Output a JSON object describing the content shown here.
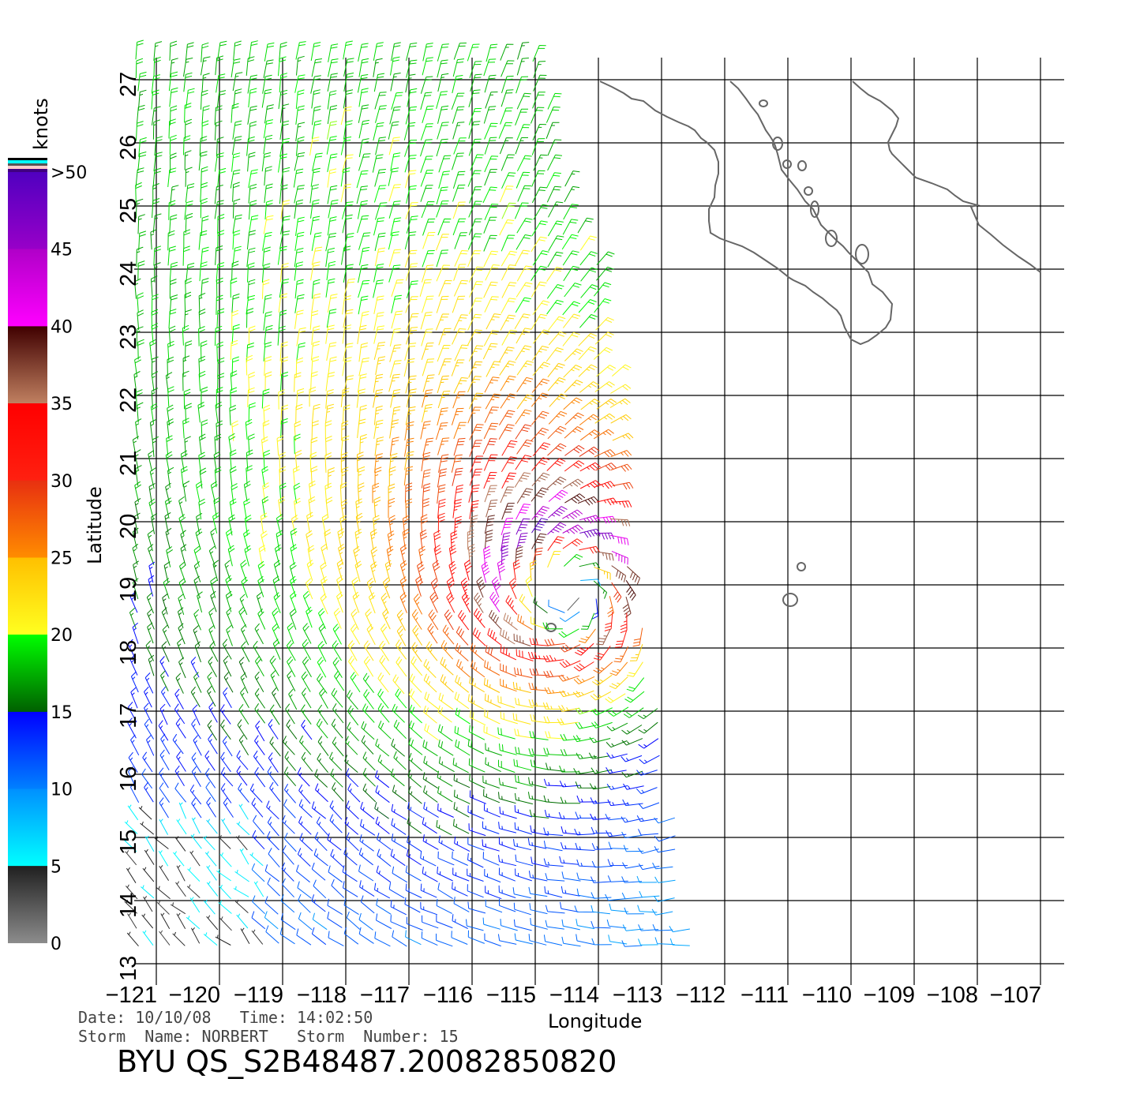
{
  "chart_data": {
    "type": "wind-barb vector field",
    "title": "BYU QS_S2B48487.20082850820",
    "xlabel": "Longitude",
    "ylabel": "Latitude",
    "xlim": [
      -121,
      -107
    ],
    "ylim": [
      13,
      27
    ],
    "xticks": [
      "-121",
      "-120",
      "-119",
      "-118",
      "-117",
      "-116",
      "-115",
      "-114",
      "-113",
      "-112",
      "-111",
      "-110",
      "-109",
      "-108",
      "-107"
    ],
    "yticks": [
      "13",
      "14",
      "15",
      "16",
      "17",
      "18",
      "19",
      "20",
      "21",
      "22",
      "23",
      "24",
      "25",
      "26",
      "27"
    ],
    "grid": true,
    "colorbar": {
      "label": "knots",
      "tick_labels": [
        "0",
        "5",
        "10",
        "15",
        "20",
        "25",
        "30",
        "35",
        "40",
        "45",
        ">50"
      ],
      "stops": [
        {
          "kt": 0,
          "color": "#8c8c8c"
        },
        {
          "kt": 5,
          "color": "#202020"
        },
        {
          "kt": 5.01,
          "color": "#00ffff"
        },
        {
          "kt": 10,
          "color": "#0090ff"
        },
        {
          "kt": 10.01,
          "color": "#0080ff"
        },
        {
          "kt": 15,
          "color": "#0000ff"
        },
        {
          "kt": 15.01,
          "color": "#006000"
        },
        {
          "kt": 20,
          "color": "#00ff00"
        },
        {
          "kt": 20.01,
          "color": "#ffff20"
        },
        {
          "kt": 25,
          "color": "#ffc000"
        },
        {
          "kt": 25.01,
          "color": "#ff8c00"
        },
        {
          "kt": 30,
          "color": "#e83010"
        },
        {
          "kt": 30.01,
          "color": "#ff2010"
        },
        {
          "kt": 35,
          "color": "#ff0000"
        },
        {
          "kt": 35.01,
          "color": "#c08060"
        },
        {
          "kt": 40,
          "color": "#400000"
        },
        {
          "kt": 40.01,
          "color": "#ff00ff"
        },
        {
          "kt": 45,
          "color": "#b000c8"
        },
        {
          "kt": 45.01,
          "color": "#9800c8"
        },
        {
          "kt": 50,
          "color": "#5000c0"
        }
      ]
    },
    "wind_field": {
      "storm_center_lon": -114.6,
      "storm_center_lat": 18.9,
      "max_wind_kt": 42,
      "radius_max_wind_deg": 1.0,
      "background_kt": 11,
      "swath_east_edge": [
        [
          27.3,
          -115.0
        ],
        [
          26,
          -114.6
        ],
        [
          25,
          -114.5
        ],
        [
          24,
          -114.0
        ],
        [
          23,
          -113.9
        ],
        [
          22,
          -113.7
        ],
        [
          20,
          -113.7
        ],
        [
          19,
          -113.4
        ],
        [
          18,
          -113.2
        ],
        [
          17,
          -113.0
        ],
        [
          16,
          -112.9
        ],
        [
          15,
          -112.7
        ],
        [
          13.2,
          -112.5
        ]
      ],
      "swath_west_lon": -121.3,
      "swath_lat_range": [
        13.1,
        27.3
      ],
      "sample_spacing_deg": 0.25
    }
  },
  "info": {
    "date_line": "Date: 10/10/08   Time: 14:02:50",
    "storm_line": "Storm  Name: NORBERT   Storm  Number: 15"
  }
}
